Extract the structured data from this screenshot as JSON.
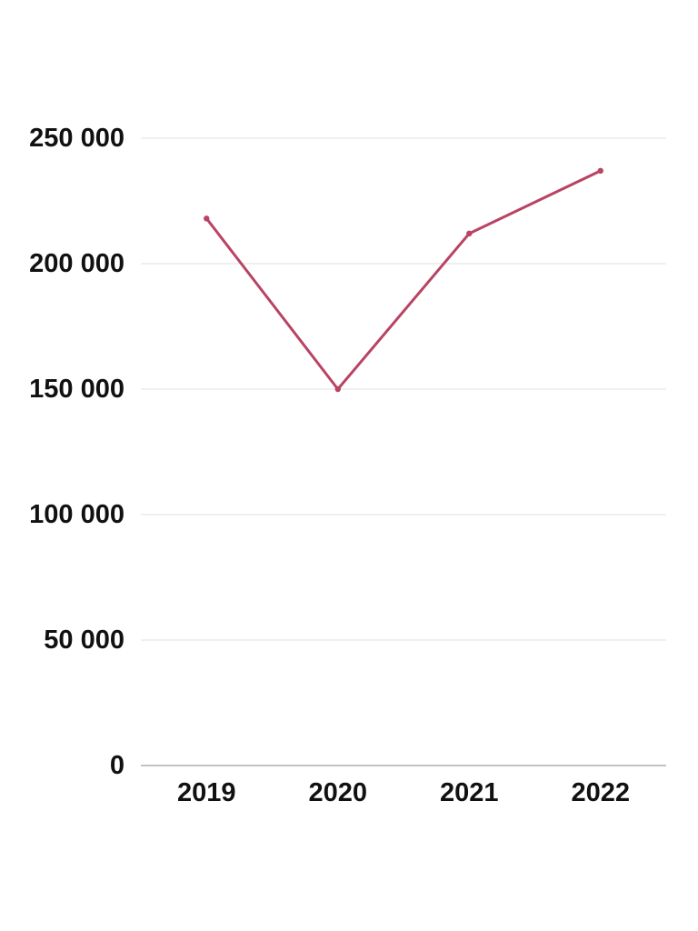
{
  "chart_data": {
    "type": "line",
    "categories": [
      "2019",
      "2020",
      "2021",
      "2022"
    ],
    "series": [
      {
        "name": "value",
        "values": [
          218000,
          150000,
          212000,
          237000
        ]
      }
    ],
    "title": "",
    "xlabel": "",
    "ylabel": "",
    "ylim": [
      0,
      250000
    ],
    "y_ticks": [
      {
        "value": 0,
        "label": "0"
      },
      {
        "value": 50000,
        "label": "50 000"
      },
      {
        "value": 100000,
        "label": "100 000"
      },
      {
        "value": 150000,
        "label": "150 000"
      },
      {
        "value": 200000,
        "label": "200 000"
      },
      {
        "value": 250000,
        "label": "250 000"
      }
    ],
    "grid": "horizontal",
    "legend": "none",
    "markers": true,
    "colors": {
      "line": "#b94363",
      "marker": "#b94363",
      "gridline": "#ebebeb",
      "zero_axis": "#c3c3c3",
      "tick_text": "#111111",
      "background": "#ffffff"
    }
  }
}
